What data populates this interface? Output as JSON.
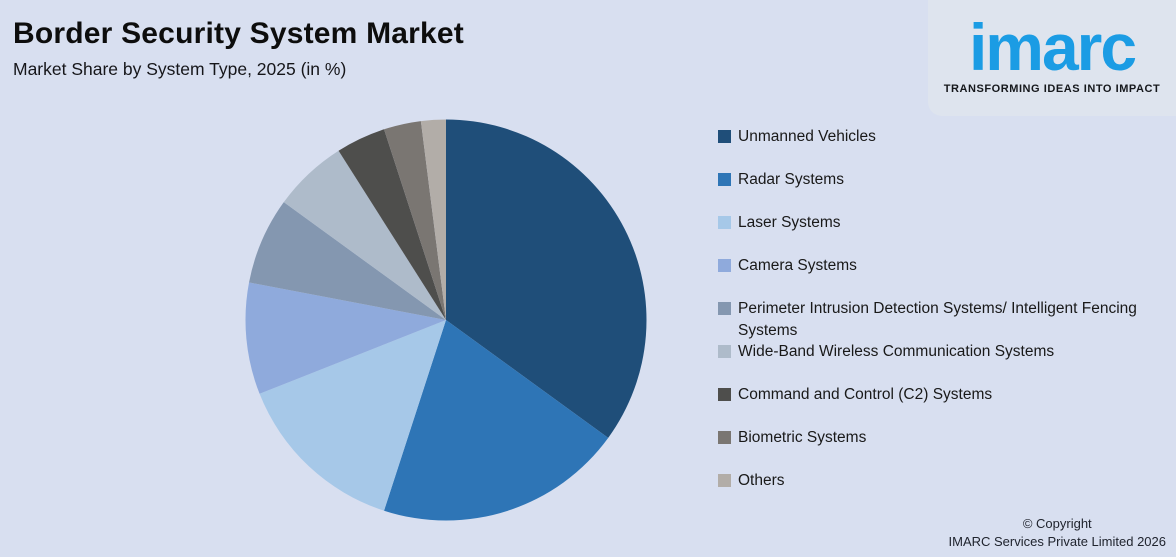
{
  "chart_data": {
    "type": "pie",
    "title": "Border Security System Market",
    "subtitle": "Market Share by System Type, 2025 (in %)",
    "unit": "%",
    "start_angle": "12 o'clock, clockwise",
    "legend_position": "right",
    "grid": false,
    "data_labels_shown": false,
    "categories": [
      "Unmanned Vehicles",
      "Radar Systems",
      "Laser Systems",
      "Camera Systems",
      "Perimeter Intrusion Detection Systems/ Intelligent Fencing Systems",
      "Wide-Band Wireless Communication Systems",
      "Command and Control (C2) Systems",
      "Biometric Systems",
      "Others"
    ],
    "values": [
      35,
      20,
      14,
      9,
      7,
      6,
      4,
      3,
      2
    ],
    "colors": [
      "#1f4e79",
      "#2e75b6",
      "#a6c8e8",
      "#8faadc",
      "#8497b0",
      "#aebbca",
      "#4e4e4c",
      "#7a7672",
      "#b2ada8"
    ]
  },
  "logo": {
    "wordmark": "imarc",
    "tagline": "TRANSFORMING IDEAS INTO IMPACT",
    "brand_color": "#1b9ce4"
  },
  "footer": {
    "line1": "© Copyright",
    "line2": "IMARC Services Private Limited 2026"
  },
  "page": {
    "background": "#d8dff0",
    "logo_panel_background": "#dee4ee"
  }
}
